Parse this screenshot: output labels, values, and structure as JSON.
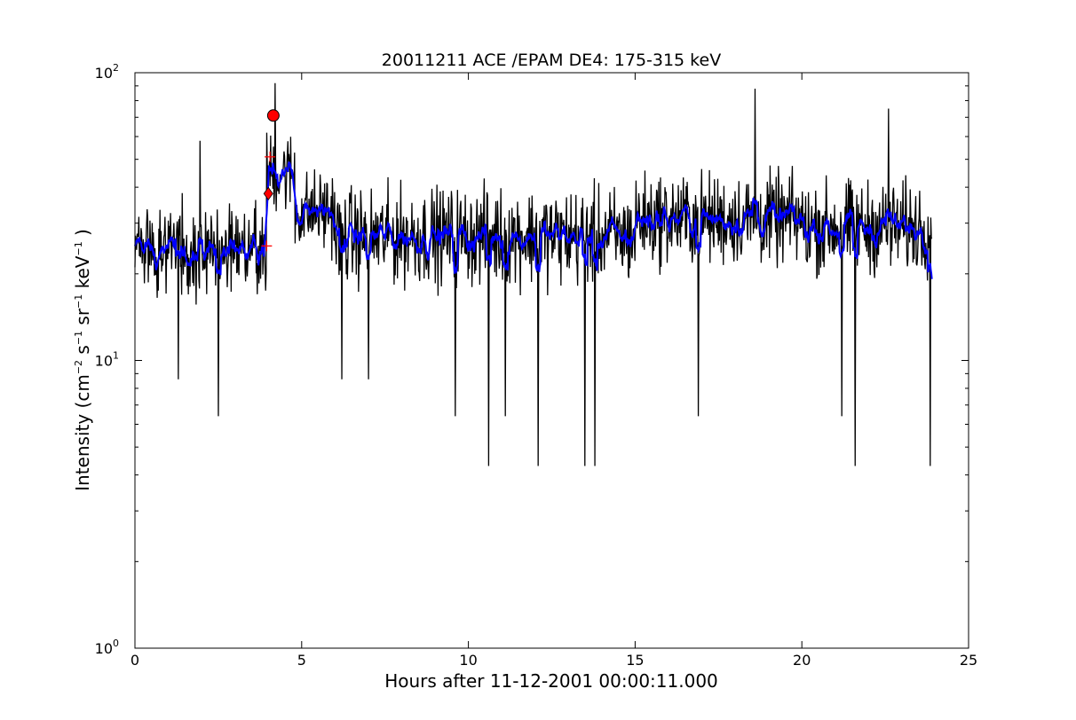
{
  "chart_data": {
    "type": "line",
    "title": "20011211 ACE /EPAM DE4: 175-315 keV",
    "xlabel": "Hours after 11-12-2001 00:00:11.000",
    "ylabel": {
      "prefix": "Intensity (cm",
      "exp1": "−2",
      "s": " s",
      "exp2": "−1",
      "sr": " sr",
      "exp3": "−1",
      "kev": " keV",
      "exp4": "−1",
      "suffix": " )"
    },
    "xlim": [
      0,
      25
    ],
    "ylim": [
      1,
      100
    ],
    "yscale": "log",
    "grid": false,
    "x_ticks": [
      "0",
      "5",
      "10",
      "15",
      "20",
      "25"
    ],
    "y_ticks": [
      {
        "base": "10",
        "exp": "0"
      },
      {
        "base": "10",
        "exp": "1"
      },
      {
        "base": "10",
        "exp": "2"
      }
    ],
    "x_range": [
      0.0,
      23.9
    ],
    "series": [
      {
        "style": "raw",
        "color": "#000000",
        "segments": [
          {
            "x_start": 0.0,
            "x_end": 3.95,
            "level": 24,
            "spread": 1.7
          },
          {
            "x_start": 3.95,
            "x_end": 4.8,
            "level": 45,
            "spread": 1.6
          },
          {
            "x_start": 4.8,
            "x_end": 6.0,
            "level": 33,
            "spread": 1.6
          },
          {
            "x_start": 6.0,
            "x_end": 15.0,
            "level": 27,
            "spread": 1.75
          },
          {
            "x_start": 15.0,
            "x_end": 20.0,
            "level": 31,
            "spread": 1.7
          },
          {
            "x_start": 20.0,
            "x_end": 23.9,
            "level": 29,
            "spread": 1.7
          }
        ],
        "spikes": [
          {
            "x": 4.2,
            "y": 92
          },
          {
            "x": 18.6,
            "y": 88
          },
          {
            "x": 22.6,
            "y": 75
          },
          {
            "x": 1.95,
            "y": 58
          },
          {
            "x": 1.3,
            "y": 8.6
          },
          {
            "x": 2.5,
            "y": 6.4
          },
          {
            "x": 6.2,
            "y": 8.6
          },
          {
            "x": 7.0,
            "y": 8.6
          },
          {
            "x": 9.6,
            "y": 6.4
          },
          {
            "x": 10.6,
            "y": 4.3
          },
          {
            "x": 11.1,
            "y": 6.4
          },
          {
            "x": 12.1,
            "y": 4.3
          },
          {
            "x": 13.5,
            "y": 4.3
          },
          {
            "x": 13.8,
            "y": 4.3
          },
          {
            "x": 16.9,
            "y": 6.4
          },
          {
            "x": 21.2,
            "y": 6.4
          },
          {
            "x": 21.6,
            "y": 4.3
          },
          {
            "x": 23.85,
            "y": 4.3
          }
        ]
      },
      {
        "style": "smoothed",
        "color": "#0000ff",
        "window": 4
      }
    ],
    "markers": [
      {
        "x": 4.15,
        "y": 71,
        "shape": "circle",
        "color": "#ff0000"
      },
      {
        "x": 4.0,
        "y": 38,
        "shape": "diamond",
        "color": "#ff0000"
      },
      {
        "x": 4.05,
        "y": 51,
        "shape": "plus",
        "color": "#ff0000"
      },
      {
        "x": 3.95,
        "y": 25,
        "shape": "plus",
        "color": "#ff0000"
      }
    ]
  }
}
